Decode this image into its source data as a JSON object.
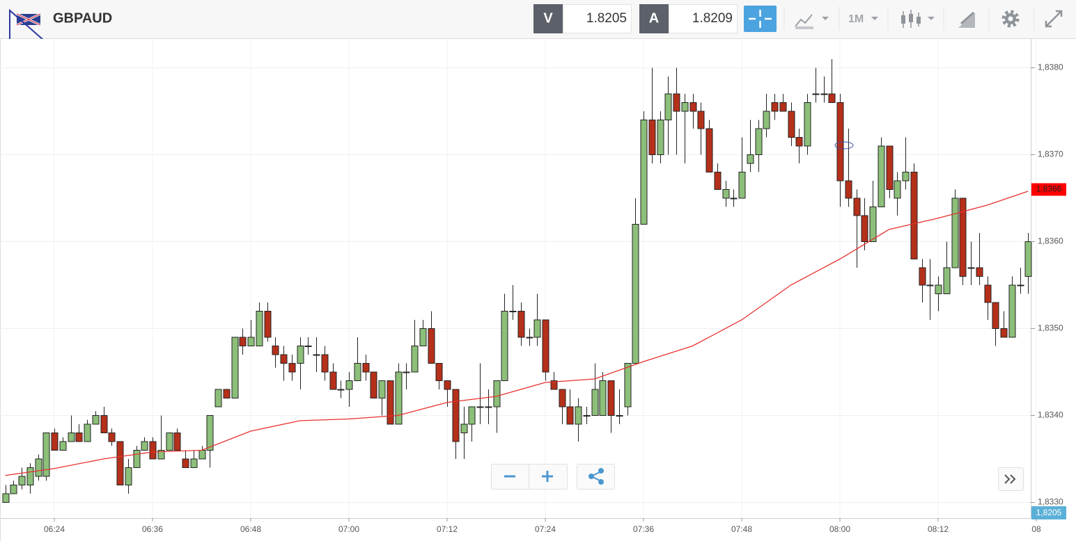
{
  "header": {
    "symbol": "GBPAUD",
    "sell": {
      "label": "V",
      "price": "1.8205"
    },
    "buy": {
      "label": "A",
      "price": "1.8209"
    },
    "timeframe": "1M"
  },
  "chart_data": {
    "type": "candlestick",
    "x": [
      "06:18",
      "06:19",
      "06:20",
      "06:21",
      "06:22",
      "06:23",
      "06:24",
      "06:25",
      "06:26",
      "06:27",
      "06:28",
      "06:29",
      "06:30",
      "06:31",
      "06:32",
      "06:33",
      "06:34",
      "06:35",
      "06:36",
      "06:37",
      "06:38",
      "06:39",
      "06:40",
      "06:41",
      "06:42",
      "06:43",
      "06:44",
      "06:45",
      "06:46",
      "06:47",
      "06:48",
      "06:49",
      "06:50",
      "06:51",
      "06:52",
      "06:53",
      "06:54",
      "06:55",
      "06:56",
      "06:57",
      "06:58",
      "06:59",
      "07:00",
      "07:01",
      "07:02",
      "07:03",
      "07:04",
      "07:05",
      "07:06",
      "07:07",
      "07:08",
      "07:09",
      "07:10",
      "07:11",
      "07:12",
      "07:13",
      "07:14",
      "07:15",
      "07:16",
      "07:17",
      "07:18",
      "07:19",
      "07:20",
      "07:21",
      "07:22",
      "07:23",
      "07:24",
      "07:25",
      "07:26",
      "07:27",
      "07:28",
      "07:29",
      "07:30",
      "07:31",
      "07:32",
      "07:33",
      "07:34",
      "07:35",
      "07:36",
      "07:37",
      "07:38",
      "07:39",
      "07:40",
      "07:41",
      "07:42",
      "07:43",
      "07:44",
      "07:45",
      "07:46",
      "07:47",
      "07:48",
      "07:49",
      "07:50",
      "07:51",
      "07:52",
      "07:53",
      "07:54",
      "07:55",
      "07:56",
      "07:57",
      "07:58",
      "07:59",
      "08:00",
      "08:01",
      "08:02",
      "08:03",
      "08:04",
      "08:05",
      "08:06",
      "08:07",
      "08:08",
      "08:09",
      "08:10",
      "08:11",
      "08:12",
      "08:13",
      "08:14",
      "08:15",
      "08:16",
      "08:17",
      "08:18",
      "08:19",
      "08:20",
      "08:21",
      "08:22",
      "08:23"
    ],
    "open": [
      1.833,
      1.8331,
      1.8332,
      1.8332,
      1.8333,
      1.8333,
      1.8338,
      1.8336,
      1.8337,
      1.8338,
      1.8337,
      1.8339,
      1.834,
      1.8338,
      1.8337,
      1.8332,
      1.8334,
      1.8336,
      1.8337,
      1.8335,
      1.8336,
      1.8338,
      1.8335,
      1.8334,
      1.8335,
      1.8336,
      1.8341,
      1.8343,
      1.8342,
      1.8349,
      1.8348,
      1.8348,
      1.8352,
      1.8348,
      1.8347,
      1.8346,
      1.8346,
      1.8348,
      1.8347,
      1.8347,
      1.8345,
      1.8343,
      1.8343,
      1.8344,
      1.8346,
      1.8345,
      1.8342,
      1.8344,
      1.8339,
      1.8345,
      1.8345,
      1.8348,
      1.835,
      1.8346,
      1.8344,
      1.8343,
      1.8338,
      1.8339,
      1.8341,
      1.8341,
      1.8341,
      1.8344,
      1.8352,
      1.8352,
      1.8349,
      1.8349,
      1.8351,
      1.8344,
      1.8343,
      1.8341,
      1.8339,
      1.834,
      1.834,
      1.834,
      1.8344,
      1.834,
      1.8341,
      1.8346,
      1.8362,
      1.8374,
      1.837,
      1.8374,
      1.8377,
      1.8375,
      1.8376,
      1.8375,
      1.8373,
      1.8368,
      1.8365,
      1.8365,
      1.8365,
      1.8369,
      1.837,
      1.8373,
      1.8376,
      1.8376,
      1.8375,
      1.8372,
      1.8371,
      1.8377,
      1.8377,
      1.8377,
      1.8376,
      1.8367,
      1.8365,
      1.8363,
      1.836,
      1.8364,
      1.8371,
      1.8365,
      1.8367,
      1.8368,
      1.8357,
      1.8355,
      1.8354,
      1.8354,
      1.8357,
      1.8365,
      1.8357,
      1.8357,
      1.8355,
      1.8353,
      1.835,
      1.8349,
      1.8355,
      1.8356
    ],
    "high": [
      1.8332,
      1.83325,
      1.8334,
      1.83345,
      1.83355,
      1.8338,
      1.83385,
      1.83375,
      1.834,
      1.8339,
      1.83395,
      1.83405,
      1.8341,
      1.83385,
      1.8337,
      1.8335,
      1.83365,
      1.83375,
      1.83375,
      1.834,
      1.8338,
      1.83385,
      1.8336,
      1.8336,
      1.83365,
      1.834,
      1.8343,
      1.8343,
      1.8349,
      1.835,
      1.8351,
      1.8353,
      1.8353,
      1.8349,
      1.8348,
      1.8347,
      1.8349,
      1.8349,
      1.8349,
      1.8348,
      1.8346,
      1.8344,
      1.8345,
      1.8349,
      1.8347,
      1.8345,
      1.8344,
      1.8344,
      1.8346,
      1.8346,
      1.8351,
      1.8351,
      1.8352,
      1.8346,
      1.8344,
      1.8343,
      1.8341,
      1.8341,
      1.8346,
      1.8343,
      1.8344,
      1.8354,
      1.8355,
      1.8353,
      1.835,
      1.8354,
      1.8351,
      1.8345,
      1.8343,
      1.8343,
      1.8342,
      1.8341,
      1.8346,
      1.8345,
      1.8344,
      1.8343,
      1.8346,
      1.8365,
      1.8375,
      1.838,
      1.8375,
      1.8379,
      1.838,
      1.8377,
      1.8377,
      1.8376,
      1.8374,
      1.8369,
      1.8367,
      1.8366,
      1.8372,
      1.8374,
      1.8374,
      1.8377,
      1.8377,
      1.8377,
      1.8376,
      1.8373,
      1.8377,
      1.838,
      1.8379,
      1.8381,
      1.8377,
      1.8373,
      1.8366,
      1.8365,
      1.8367,
      1.8372,
      1.8371,
      1.8368,
      1.8372,
      1.8369,
      1.8358,
      1.8358,
      1.8356,
      1.836,
      1.8366,
      1.8365,
      1.836,
      1.8361,
      1.8356,
      1.8353,
      1.8352,
      1.8356,
      1.8357,
      1.8361
    ],
    "low": [
      1.833,
      1.8331,
      1.83315,
      1.8331,
      1.83325,
      1.83325,
      1.8336,
      1.8336,
      1.8337,
      1.8337,
      1.8337,
      1.8339,
      1.8338,
      1.83365,
      1.8332,
      1.8331,
      1.8334,
      1.8336,
      1.8335,
      1.8335,
      1.8336,
      1.8336,
      1.8334,
      1.8334,
      1.8335,
      1.8334,
      1.8341,
      1.8342,
      1.8342,
      1.8347,
      1.8348,
      1.8348,
      1.83485,
      1.83455,
      1.8344,
      1.8344,
      1.8343,
      1.8347,
      1.8345,
      1.8344,
      1.8343,
      1.8342,
      1.8341,
      1.8344,
      1.8344,
      1.8342,
      1.834,
      1.8339,
      1.8339,
      1.8343,
      1.8345,
      1.8348,
      1.8346,
      1.8343,
      1.8341,
      1.8335,
      1.8335,
      1.8337,
      1.8339,
      1.8339,
      1.8338,
      1.8344,
      1.8351,
      1.8348,
      1.8348,
      1.8348,
      1.8344,
      1.8343,
      1.8339,
      1.8339,
      1.8337,
      1.8339,
      1.834,
      1.834,
      1.8338,
      1.8339,
      1.834,
      1.8346,
      1.8362,
      1.8369,
      1.8369,
      1.837,
      1.837,
      1.8369,
      1.8373,
      1.837,
      1.8368,
      1.8366,
      1.8364,
      1.8364,
      1.8365,
      1.8368,
      1.8368,
      1.8372,
      1.8374,
      1.8375,
      1.8371,
      1.8369,
      1.837,
      1.8376,
      1.8376,
      1.8376,
      1.8364,
      1.8364,
      1.8357,
      1.8359,
      1.836,
      1.8364,
      1.8365,
      1.8363,
      1.8366,
      1.8358,
      1.8353,
      1.8351,
      1.8352,
      1.8354,
      1.8357,
      1.8355,
      1.8355,
      1.8355,
      1.8351,
      1.8348,
      1.8349,
      1.8349,
      1.8354,
      1.8354
    ],
    "close": [
      1.8331,
      1.8332,
      1.8333,
      1.8334,
      1.8335,
      1.8338,
      1.8336,
      1.8337,
      1.8338,
      1.8337,
      1.8339,
      1.834,
      1.8338,
      1.8337,
      1.8332,
      1.8334,
      1.8336,
      1.8337,
      1.8335,
      1.8336,
      1.8338,
      1.8336,
      1.8334,
      1.8335,
      1.8336,
      1.834,
      1.8343,
      1.8342,
      1.8349,
      1.8348,
      1.8349,
      1.8352,
      1.8349,
      1.8347,
      1.8346,
      1.8345,
      1.8348,
      1.8348,
      1.8347,
      1.8345,
      1.8343,
      1.8343,
      1.8344,
      1.8346,
      1.8345,
      1.8342,
      1.8344,
      1.8339,
      1.8345,
      1.8345,
      1.8348,
      1.835,
      1.8346,
      1.8344,
      1.8343,
      1.8337,
      1.8339,
      1.8341,
      1.8341,
      1.8341,
      1.8344,
      1.8352,
      1.8352,
      1.8349,
      1.8349,
      1.8351,
      1.8345,
      1.8343,
      1.8341,
      1.8339,
      1.8341,
      1.834,
      1.8343,
      1.8344,
      1.834,
      1.834,
      1.8346,
      1.8362,
      1.8374,
      1.837,
      1.8374,
      1.8377,
      1.8375,
      1.8376,
      1.8375,
      1.8373,
      1.8368,
      1.8366,
      1.8366,
      1.8365,
      1.8368,
      1.837,
      1.8373,
      1.8375,
      1.8375,
      1.8375,
      1.8372,
      1.8371,
      1.8376,
      1.8377,
      1.8377,
      1.8376,
      1.8367,
      1.8365,
      1.8363,
      1.836,
      1.8364,
      1.8371,
      1.8366,
      1.8367,
      1.8368,
      1.8358,
      1.8355,
      1.8355,
      1.8355,
      1.8357,
      1.8365,
      1.8356,
      1.8357,
      1.8356,
      1.8353,
      1.835,
      1.8349,
      1.8355,
      1.8355,
      1.836
    ],
    "up_color": "#8cbf79",
    "down_color": "#b5301a",
    "overlay": {
      "type": "line",
      "color": "#e8302e",
      "x": [
        "06:18",
        "06:24",
        "06:30",
        "06:36",
        "06:42",
        "06:48",
        "06:54",
        "07:00",
        "07:06",
        "07:12",
        "07:18",
        "07:24",
        "07:30",
        "07:36",
        "07:42",
        "07:48",
        "07:54",
        "08:00",
        "08:06",
        "08:12",
        "08:18",
        "08:23"
      ],
      "values": [
        1.83331,
        1.83339,
        1.8335,
        1.83358,
        1.8336,
        1.83382,
        1.83394,
        1.83396,
        1.834,
        1.83415,
        1.83422,
        1.83438,
        1.83442,
        1.83462,
        1.8348,
        1.8351,
        1.8355,
        1.8358,
        1.83614,
        1.83627,
        1.83642,
        1.83658
      ]
    },
    "ylim": [
      1.83282,
      1.83834
    ],
    "yticks": [
      {
        "value": 1.833,
        "label": "1,8330"
      },
      {
        "value": 1.834,
        "label": "1,8340"
      },
      {
        "value": 1.835,
        "label": "1,8350"
      },
      {
        "value": 1.836,
        "label": "1,8360"
      },
      {
        "value": 1.837,
        "label": "1,8370"
      },
      {
        "value": 1.838,
        "label": "1,8380"
      }
    ],
    "xticks": [
      "06:24",
      "06:36",
      "06:48",
      "07:00",
      "07:12",
      "07:24",
      "07:36",
      "07:48",
      "08:00",
      "08:12",
      {
        "value": "08:24",
        "label": "08"
      }
    ],
    "grid": true,
    "last_price": {
      "value": 1.8366,
      "label": "1,8366",
      "color": "#ff0000"
    },
    "bid_tag": "1,8205"
  }
}
